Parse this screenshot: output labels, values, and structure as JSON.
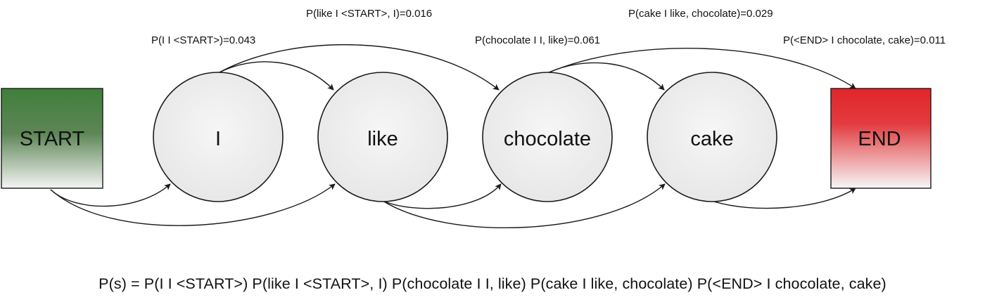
{
  "colors": {
    "start_top": "#3f7f3a",
    "start_bottom": "#f4f4f4",
    "end_top": "#e0262a",
    "end_bottom": "#f7f7f7",
    "node_fill": "#eeeeee",
    "stroke": "#1a1a1a"
  },
  "nodes": {
    "start": "START",
    "i": "I",
    "like": "like",
    "chocolate": "chocolate",
    "cake": "cake",
    "end": "END"
  },
  "edge_labels": {
    "p_i": "P(I I <START>)=0.043",
    "p_like": "P(like I <START>, I)=0.016",
    "p_chocolate": "P(chocolate I I, like)=0.061",
    "p_cake": "P(cake I like, chocolate)=0.029",
    "p_end": "P(<END> I chocolate, cake)=0.011"
  },
  "formula": "P(s) = P(I I <START>) P(like I <START>, I) P(chocolate I I, like) P(cake I like, chocolate) P(<END> I chocolate, cake)"
}
